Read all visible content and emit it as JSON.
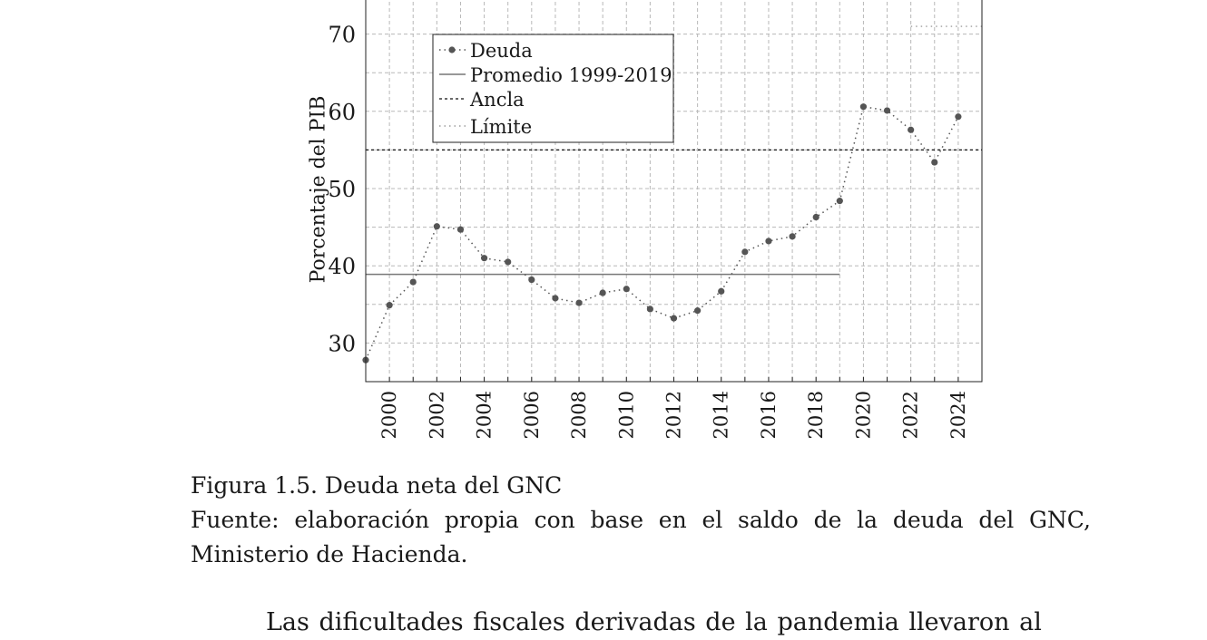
{
  "chart_data": {
    "type": "line",
    "ylabel": "Porcentaje del PIB",
    "xlabel": "",
    "xlim": [
      1999,
      2025
    ],
    "ylim": [
      25,
      75
    ],
    "x_ticks": [
      "2000",
      "2002",
      "2004",
      "2006",
      "2008",
      "2010",
      "2012",
      "2014",
      "2016",
      "2018",
      "2020",
      "2022",
      "2024"
    ],
    "y_ticks": [
      "30",
      "40",
      "50",
      "60",
      "70"
    ],
    "grid": true,
    "legend_position": "top-left",
    "series": [
      {
        "name": "Deuda",
        "style": "dotted-markers",
        "color": "#555555",
        "x": [
          1999,
          2000,
          2001,
          2002,
          2003,
          2004,
          2005,
          2006,
          2007,
          2008,
          2009,
          2010,
          2011,
          2012,
          2013,
          2014,
          2015,
          2016,
          2017,
          2018,
          2019,
          2020,
          2021,
          2022,
          2023,
          2024
        ],
        "y": [
          27.8,
          34.9,
          37.9,
          45.1,
          44.7,
          41.0,
          40.5,
          38.2,
          35.8,
          35.2,
          36.5,
          37.0,
          34.4,
          33.2,
          34.2,
          36.7,
          41.8,
          43.2,
          43.8,
          46.3,
          48.4,
          60.6,
          60.1,
          57.6,
          53.4,
          59.3
        ]
      },
      {
        "name": "Promedio 1999-2019",
        "style": "solid",
        "color": "#777777",
        "x": [
          1999,
          2019
        ],
        "y": [
          38.9,
          38.9
        ]
      },
      {
        "name": "Ancla",
        "style": "dashed",
        "color": "#111111",
        "x": [
          1999,
          2025
        ],
        "y": [
          55,
          55
        ]
      },
      {
        "name": "Límite",
        "style": "dotted",
        "color": "#888888",
        "x": [
          2022,
          2025
        ],
        "y": [
          71,
          71
        ]
      }
    ]
  },
  "caption": {
    "title": "Figura 1.5. Deuda neta del GNC",
    "source": "Fuente: elaboración propia con base en el saldo de la deuda del GNC, Ministerio de Hacienda."
  },
  "body_text": "Las dificultades fiscales derivadas de la pandemia llevaron al"
}
